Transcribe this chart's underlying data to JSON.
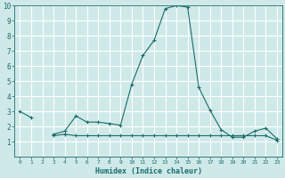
{
  "xlabel": "Humidex (Indice chaleur)",
  "ylabel": "",
  "background_color": "#cfe9e9",
  "grid_color": "#ffffff",
  "line_color": "#1a6b6b",
  "xlim": [
    -0.5,
    23.5
  ],
  "ylim": [
    0,
    10
  ],
  "xticks": [
    0,
    1,
    2,
    3,
    4,
    5,
    6,
    7,
    8,
    9,
    10,
    11,
    12,
    13,
    14,
    15,
    16,
    17,
    18,
    19,
    20,
    21,
    22,
    23
  ],
  "yticks": [
    1,
    2,
    3,
    4,
    5,
    6,
    7,
    8,
    9,
    10
  ],
  "series": [
    {
      "x": [
        0,
        1,
        2,
        3,
        4,
        5,
        6,
        7,
        8,
        9,
        10,
        11,
        12,
        13,
        14,
        15,
        16,
        17,
        18,
        19,
        20,
        21,
        22,
        23
      ],
      "y": [
        3.0,
        2.6,
        null,
        1.5,
        1.7,
        2.7,
        2.3,
        2.3,
        2.2,
        2.1,
        4.8,
        6.7,
        7.7,
        9.8,
        10.0,
        9.9,
        4.6,
        3.1,
        1.8,
        1.3,
        1.3,
        1.7,
        1.9,
        1.2
      ]
    },
    {
      "x": [
        0,
        1,
        2,
        3,
        4,
        5,
        6,
        7,
        8,
        9,
        10,
        11,
        12,
        13,
        14,
        15,
        16,
        17,
        18,
        19,
        20,
        21,
        22,
        23
      ],
      "y": [
        null,
        null,
        null,
        1.4,
        1.5,
        1.4,
        1.4,
        1.4,
        1.4,
        1.4,
        1.4,
        1.4,
        1.4,
        1.4,
        1.4,
        1.4,
        1.4,
        1.4,
        1.4,
        1.4,
        1.4,
        1.4,
        1.4,
        1.1
      ]
    }
  ]
}
